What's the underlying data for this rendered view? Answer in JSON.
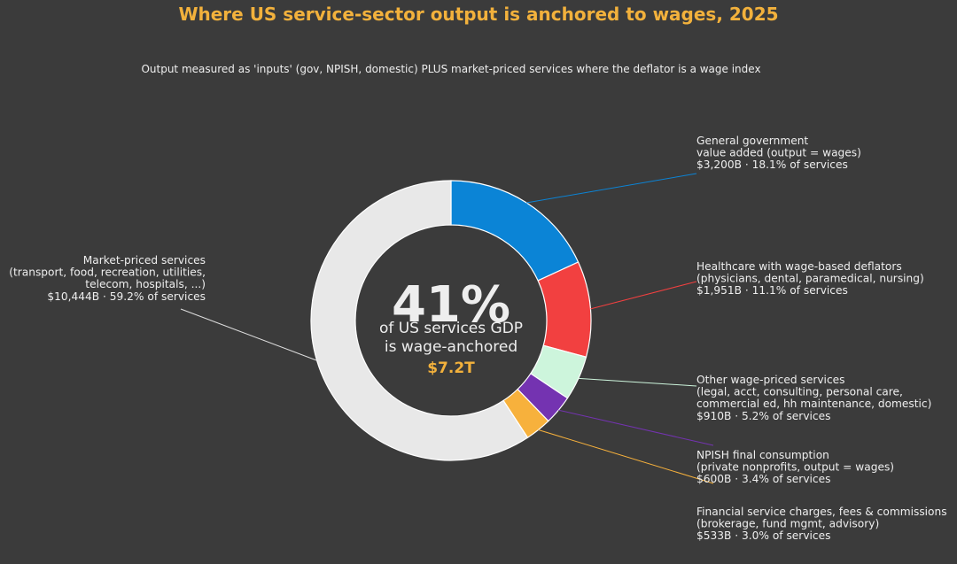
{
  "header": {
    "title": "Where US service-sector output is anchored to wages, 2025",
    "subtitle": "Output measured as 'inputs' (gov, NPISH, domestic) PLUS market-priced services where the deflator is a wage index"
  },
  "center": {
    "pct": "41%",
    "line1": "of US services GDP",
    "line2": "is wage-anchored",
    "amount": "$7.2T"
  },
  "chart_data": {
    "type": "pie",
    "variant": "donut",
    "unit": "$B",
    "categories": [
      "General government value added (output = wages)",
      "Healthcare with wage-based deflators (physicians, dental, paramedical, nursing)",
      "Other wage-priced services (legal, acct, consulting, personal care, commercial ed, hh maintenance, domestic)",
      "NPISH final consumption (private nonprofits, output = wages)",
      "Financial service charges, fees & commissions (brokerage, fund mgmt, advisory)",
      "Market-priced services (transport, food, recreation, utilities, telecom, hospitals, ...)"
    ],
    "values": [
      3200,
      1951,
      910,
      600,
      533,
      10444
    ],
    "percent_of_services": [
      18.1,
      11.1,
      5.2,
      3.4,
      3.0,
      59.2
    ],
    "colors": [
      "#0b84d6",
      "#f24040",
      "#cdf5dc",
      "#7433b1",
      "#f7b13c",
      "#e8e8e8"
    ],
    "labels": [
      {
        "lines": [
          "General government",
          "value added (output = wages)",
          "$3,200B  ·  18.1% of services"
        ],
        "side": "right"
      },
      {
        "lines": [
          "Healthcare with wage-based deflators",
          "(physicians, dental, paramedical, nursing)",
          "$1,951B  ·  11.1% of services"
        ],
        "side": "right"
      },
      {
        "lines": [
          "Other wage-priced services",
          "(legal, acct, consulting, personal care,",
          "commercial ed, hh maintenance, domestic)",
          "$910B  ·  5.2% of services"
        ],
        "side": "right"
      },
      {
        "lines": [
          "NPISH final consumption",
          "(private nonprofits, output = wages)",
          "$600B  ·  3.4% of services"
        ],
        "side": "right"
      },
      {
        "lines": [
          "Financial service charges, fees & commissions",
          "(brokerage, fund mgmt, advisory)",
          "$533B  ·  3.0% of services"
        ],
        "side": "right"
      },
      {
        "lines": [
          "Market-priced services",
          "(transport, food, recreation, utilities,",
          "telecom, hospitals, ...)",
          "$10,444B  ·  59.2% of services"
        ],
        "side": "left"
      }
    ]
  }
}
